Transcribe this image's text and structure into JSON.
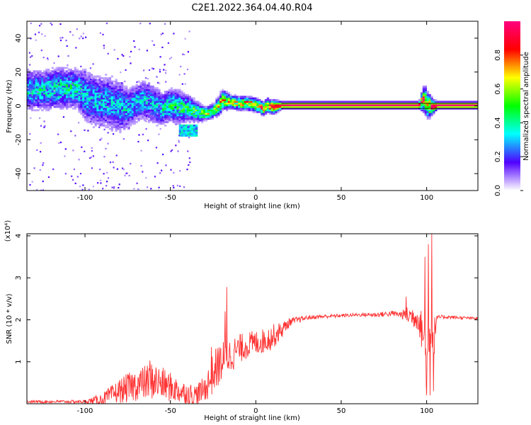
{
  "figure_title": "C2E1.2022.364.04.40.R04",
  "chart_data": [
    {
      "type": "heatmap",
      "title": "",
      "xlabel": "Height of straight line (km)",
      "ylabel": "Frequency (Hz)",
      "xlim": [
        -134,
        130
      ],
      "ylim": [
        -50,
        50
      ],
      "x_ticks": [
        -100,
        -50,
        0,
        50,
        100
      ],
      "y_ticks": [
        -40,
        -20,
        0,
        20,
        40
      ],
      "grid": false,
      "colorbar": {
        "label": "Normalized spectral amplitude",
        "range": [
          0.0,
          1.0
        ],
        "ticks": [
          0.0,
          0.2,
          0.4,
          0.6,
          0.8
        ],
        "tick_labels": [
          "0.0",
          "0.2",
          "0.4",
          "0.6",
          "0.8"
        ],
        "colors": [
          "#ffffff",
          "#5000ff",
          "#00ffff",
          "#00ff00",
          "#ffff00",
          "#ff0000",
          "#ff0080"
        ]
      },
      "ridge_x": [
        -134,
        -125,
        -115,
        -105,
        -100,
        -95,
        -90,
        -85,
        -80,
        -75,
        -70,
        -65,
        -60,
        -55,
        -50,
        -45,
        -40,
        -35,
        -30,
        -27,
        -25,
        -22,
        -20,
        -15,
        -10,
        -5,
        0,
        2,
        4,
        6,
        8,
        10,
        15,
        20,
        30,
        50,
        80,
        95,
        98,
        100,
        103,
        106,
        130
      ],
      "ridge_y": [
        9,
        9,
        10,
        10,
        5,
        3,
        2,
        1,
        -1,
        -2,
        2,
        3,
        0,
        -2,
        0,
        -1,
        -2,
        -4,
        -5,
        -4,
        -3,
        0,
        3,
        2,
        1,
        1,
        0,
        -1,
        -2,
        0,
        -1,
        -1,
        0,
        0,
        0,
        0,
        0,
        0,
        4,
        0,
        -1,
        0,
        0
      ],
      "ridge_width": [
        6,
        6,
        6,
        6,
        8,
        8,
        8,
        8,
        8,
        6,
        6,
        6,
        6,
        5,
        5,
        5,
        4,
        3,
        2,
        2,
        2,
        3,
        3,
        2,
        2,
        2,
        2,
        2,
        2,
        2,
        2,
        2,
        1,
        1,
        1,
        1,
        1,
        1,
        4,
        4,
        2,
        1,
        1
      ],
      "ridge_strength": [
        0.35,
        0.35,
        0.4,
        0.35,
        0.3,
        0.3,
        0.3,
        0.3,
        0.3,
        0.3,
        0.3,
        0.3,
        0.3,
        0.35,
        0.4,
        0.4,
        0.4,
        0.5,
        0.55,
        0.55,
        0.55,
        0.6,
        0.6,
        0.6,
        0.65,
        0.7,
        0.7,
        0.75,
        0.75,
        0.8,
        0.85,
        0.9,
        0.95,
        1.0,
        1.0,
        1.0,
        1.0,
        1.0,
        0.7,
        0.6,
        0.95,
        1.0,
        1.0
      ],
      "side_blob": {
        "x": [
          -45,
          -35
        ],
        "y": [
          -18,
          -12
        ],
        "strength": 0.35
      }
    },
    {
      "type": "line",
      "title": "",
      "xlabel": "Height of straight line (km)",
      "ylabel": "SNR (10 * v/v)",
      "scale_label": "(x10⁴)",
      "xlim": [
        -134,
        130
      ],
      "ylim": [
        0,
        4.05
      ],
      "x_ticks": [
        -100,
        -50,
        0,
        50,
        100
      ],
      "y_ticks": [
        1,
        2,
        3,
        4
      ],
      "grid": false,
      "series": [
        {
          "color": "#ff3333",
          "trend_x": [
            -134,
            -100,
            -90,
            -80,
            -70,
            -60,
            -50,
            -45,
            -40,
            -35,
            -30,
            -27,
            -24,
            -20,
            -15,
            -10,
            -5,
            0,
            5,
            10,
            15,
            20,
            25,
            30,
            40,
            50,
            60,
            70,
            80,
            90,
            95,
            99,
            100,
            102,
            104,
            106,
            110,
            120,
            130
          ],
          "trend_y": [
            0.05,
            0.05,
            0.1,
            0.3,
            0.45,
            0.55,
            0.4,
            0.3,
            0.25,
            0.2,
            0.35,
            0.55,
            0.8,
            1.0,
            1.15,
            1.3,
            1.4,
            1.45,
            1.5,
            1.6,
            1.75,
            1.95,
            2.0,
            2.05,
            2.08,
            2.1,
            2.12,
            2.12,
            2.15,
            2.1,
            2.05,
            1.5,
            0.8,
            2.0,
            1.5,
            2.05,
            2.07,
            2.05,
            2.03
          ],
          "noise_x": [
            -134,
            -100,
            -90,
            -75,
            -60,
            -50,
            -40,
            -30,
            -25,
            -20,
            -10,
            0,
            10,
            15,
            20,
            30,
            60,
            85,
            90,
            95,
            99,
            104,
            106,
            130
          ],
          "noise_y": [
            0.03,
            0.04,
            0.15,
            0.35,
            0.45,
            0.35,
            0.25,
            0.3,
            0.5,
            0.5,
            0.35,
            0.3,
            0.3,
            0.2,
            0.1,
            0.05,
            0.04,
            0.08,
            0.25,
            0.3,
            0.6,
            0.6,
            0.05,
            0.03
          ],
          "peaks": [
            {
              "x": -17,
              "y": 2.78
            },
            {
              "x": -18,
              "y": 2.2
            },
            {
              "x": -26,
              "y": 1.35
            },
            {
              "x": -62,
              "y": 1.03
            },
            {
              "x": 88,
              "y": 2.55
            },
            {
              "x": 99,
              "y": 3.5
            },
            {
              "x": 100,
              "y": 0.2
            },
            {
              "x": 101,
              "y": 3.8
            },
            {
              "x": 102,
              "y": 0.2
            },
            {
              "x": 103,
              "y": 4.05
            },
            {
              "x": 104,
              "y": 0.3
            }
          ]
        }
      ]
    }
  ]
}
